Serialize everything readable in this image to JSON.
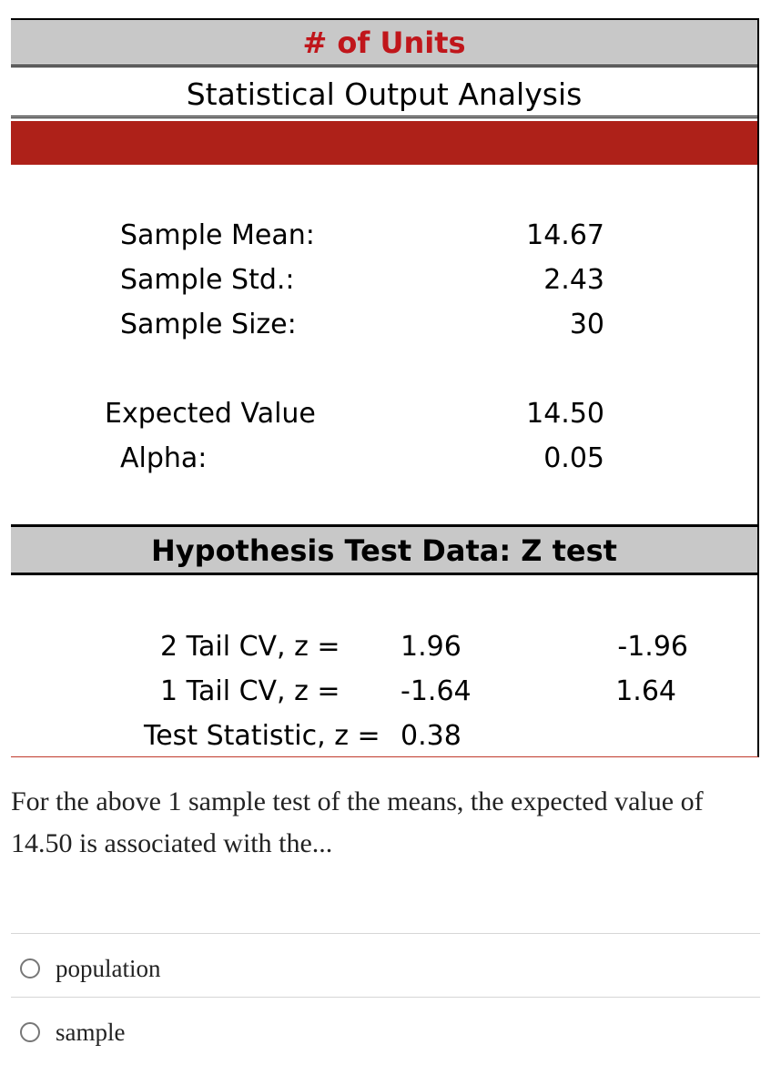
{
  "table": {
    "units_header": "# of Units",
    "title": "Statistical Output Analysis",
    "stats": [
      {
        "label": "Sample Mean:",
        "value": "14.67"
      },
      {
        "label": "Sample Std.:",
        "value": "2.43"
      },
      {
        "label": "Sample Size:",
        "value": "30"
      }
    ],
    "params": [
      {
        "label": "Expected Value",
        "value": "14.50"
      },
      {
        "label": "Alpha:",
        "value": "0.05"
      }
    ],
    "hypothesis_header": "Hypothesis Test Data: Z test",
    "tests": [
      {
        "label": "2 Tail CV, z =",
        "value1": "1.96",
        "value2": "-1.96"
      },
      {
        "label": "1 Tail CV, z =",
        "value1": "-1.64",
        "value2": "1.64"
      },
      {
        "label": "Test Statistic, z =",
        "value1": "0.38",
        "value2": ""
      }
    ]
  },
  "question": {
    "text": "For the above 1 sample test of the means, the expected value of 14.50 is associated with the...",
    "options": [
      "population",
      "sample"
    ]
  }
}
